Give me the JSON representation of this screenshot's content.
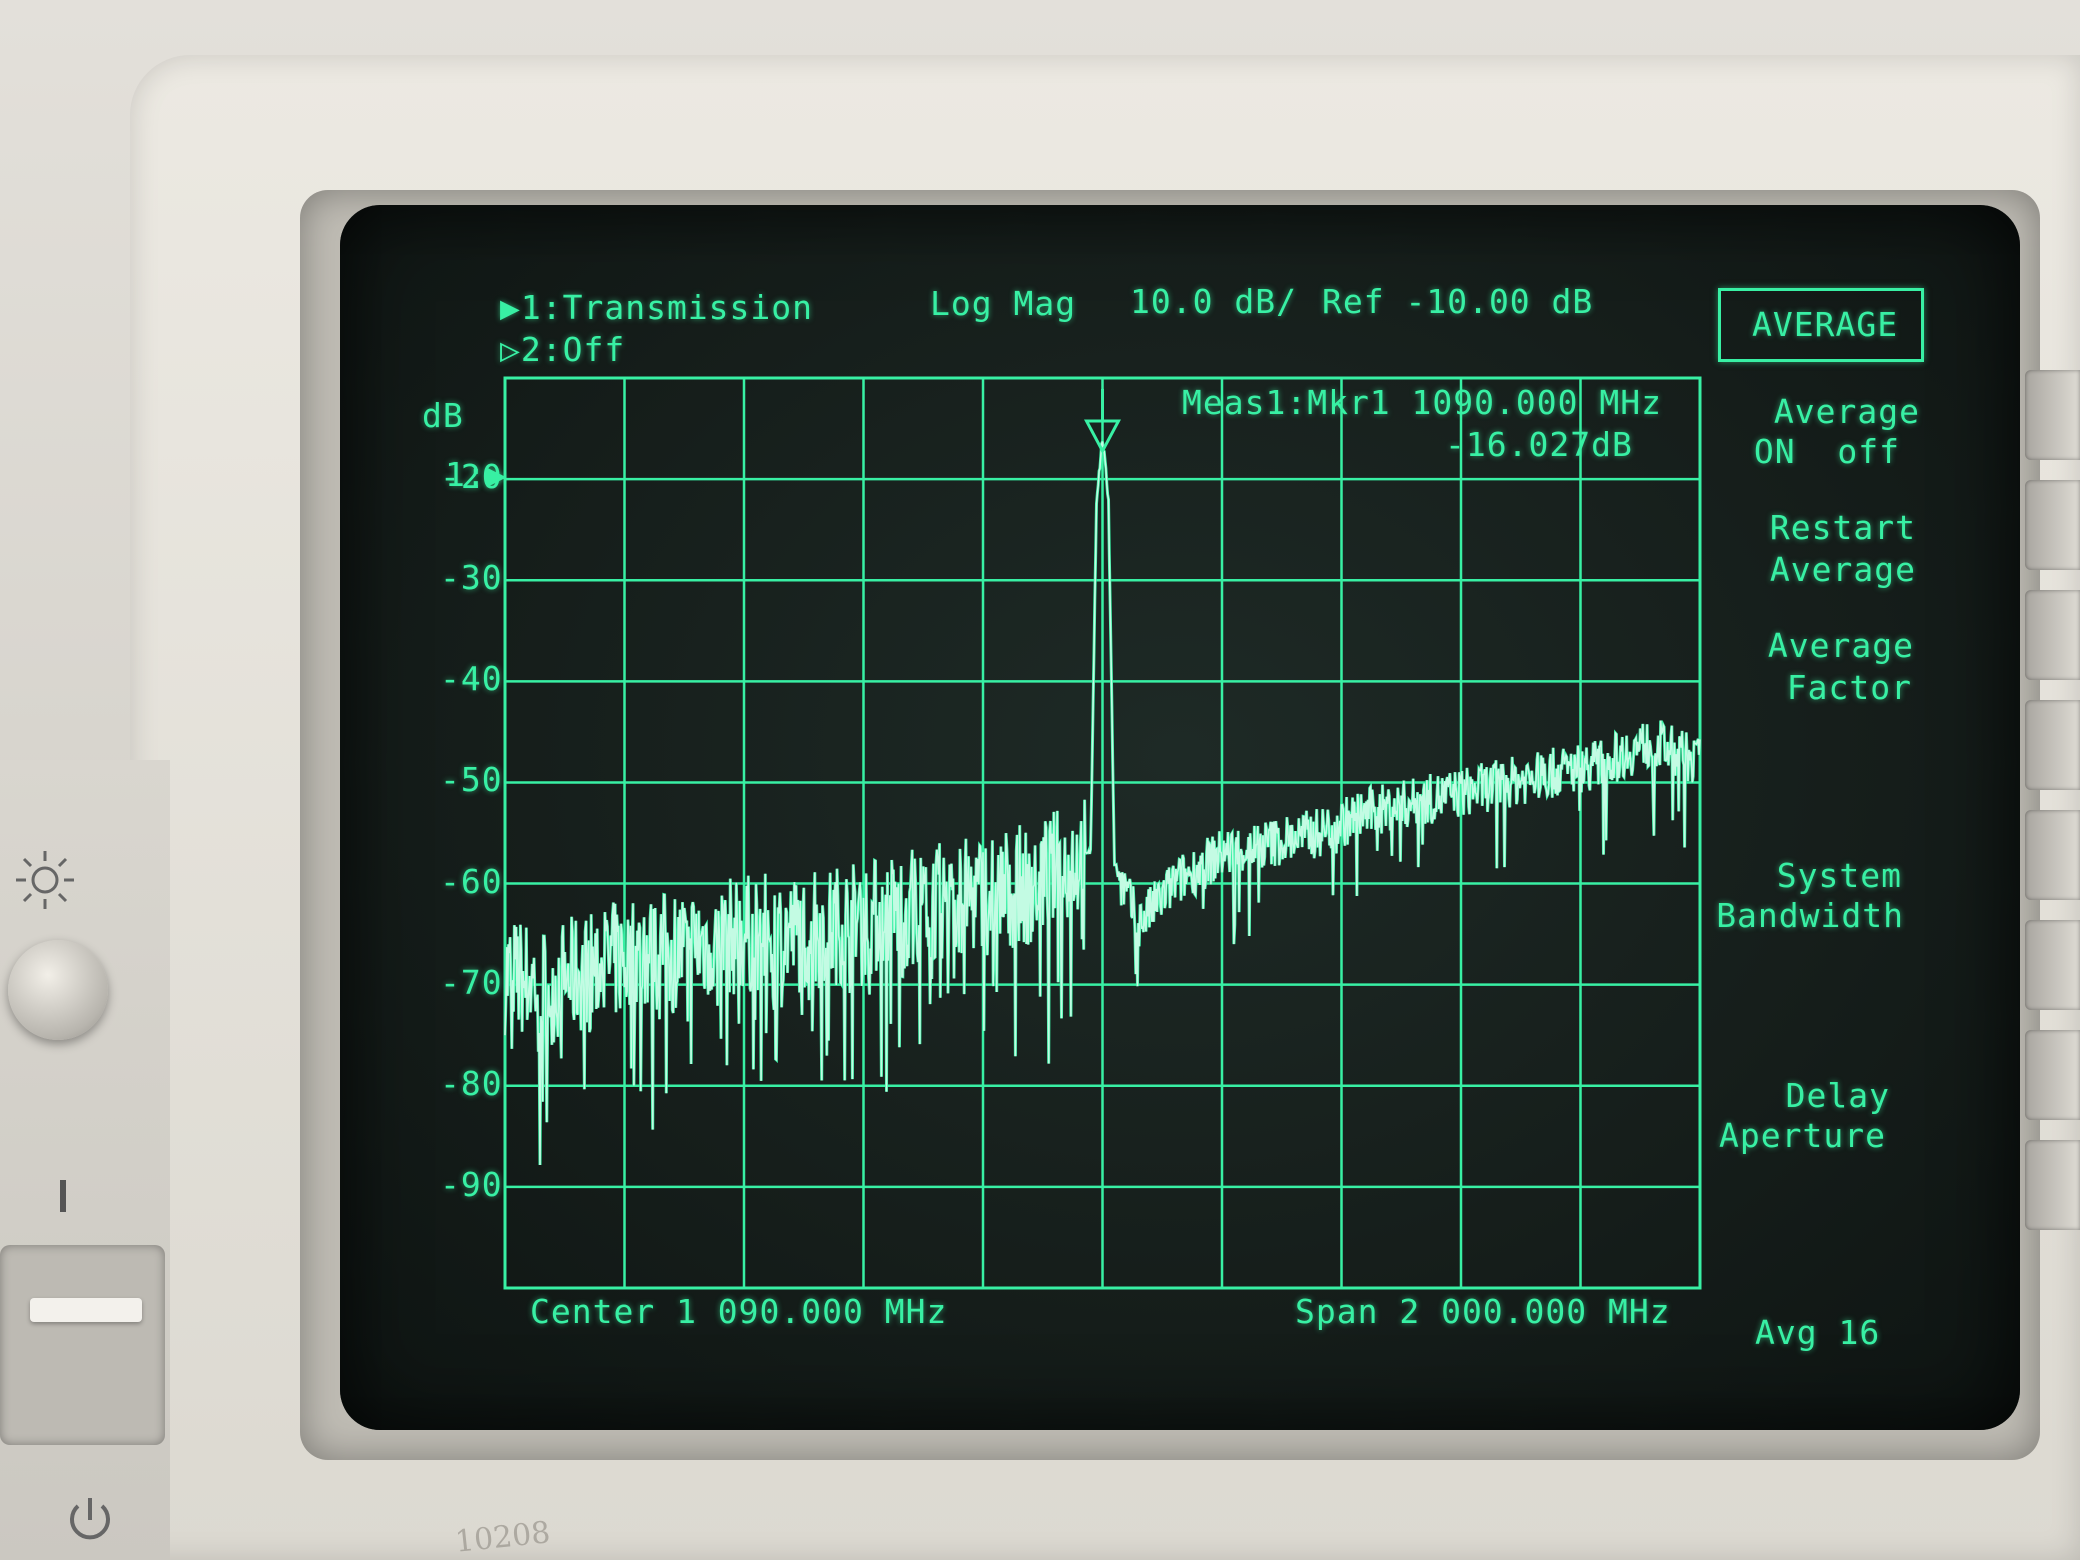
{
  "header": {
    "trace1": "▶1:Transmission",
    "trace2": "▷2:Off",
    "format": "Log Mag",
    "scale": "10.0 dB/",
    "ref": "Ref -10.00 dB"
  },
  "marker": {
    "line1": "Meas1:Mkr1 1090.000 MHz",
    "line2": "-16.027dB"
  },
  "axis": {
    "unit": "dB",
    "ref_marker": "1:▶",
    "ticks": [
      "-20",
      "-30",
      "-40",
      "-50",
      "-60",
      "-70",
      "-80",
      "-90"
    ]
  },
  "footer": {
    "center": "Center 1 090.000 MHz",
    "span": "Span 2 000.000 MHz",
    "avg": "Avg 16"
  },
  "softkeys": {
    "title": "AVERAGE",
    "average_line1": "Average",
    "average_line2": "ON  off",
    "restart_line1": "Restart",
    "restart_line2": "Average",
    "factor_line1": "Average",
    "factor_line2": "Factor",
    "system_line1": "System",
    "system_line2": "Bandwidth",
    "delay_line1": "Delay",
    "delay_line2": "Aperture"
  },
  "panel": {
    "label_handwritten": "10208"
  },
  "colors": {
    "trace_green": "#38f0a4",
    "trace_white": "#f2fff8",
    "screen_bg": "#151d1a"
  },
  "chart_data": {
    "type": "line",
    "title": "",
    "xlabel": "",
    "ylabel": "dB",
    "xlim": [
      90,
      2090
    ],
    "ylim": [
      -100,
      -10
    ],
    "x_center_mhz": 1090,
    "span_mhz": 2000,
    "yticks": [
      -20,
      -30,
      -40,
      -50,
      -60,
      -70,
      -80,
      -90
    ],
    "series": [
      {
        "name": "",
        "x": [
          90,
          170,
          250,
          330,
          410,
          490,
          570,
          650,
          730,
          810,
          890,
          970,
          1030,
          1070,
          1080,
          1090,
          1100,
          1110,
          1150,
          1210,
          1290,
          1370,
          1450,
          1530,
          1610,
          1690,
          1770,
          1850,
          1930,
          2010,
          2090
        ],
        "y": [
          -69,
          -70,
          -68,
          -67,
          -66,
          -65,
          -65,
          -64,
          -63,
          -62,
          -61,
          -60,
          -58,
          -57,
          -22,
          -16,
          -22,
          -58,
          -64,
          -60,
          -57,
          -56,
          -55,
          -53,
          -52,
          -51,
          -50,
          -49,
          -48,
          -46,
          -48
        ]
      }
    ]
  }
}
